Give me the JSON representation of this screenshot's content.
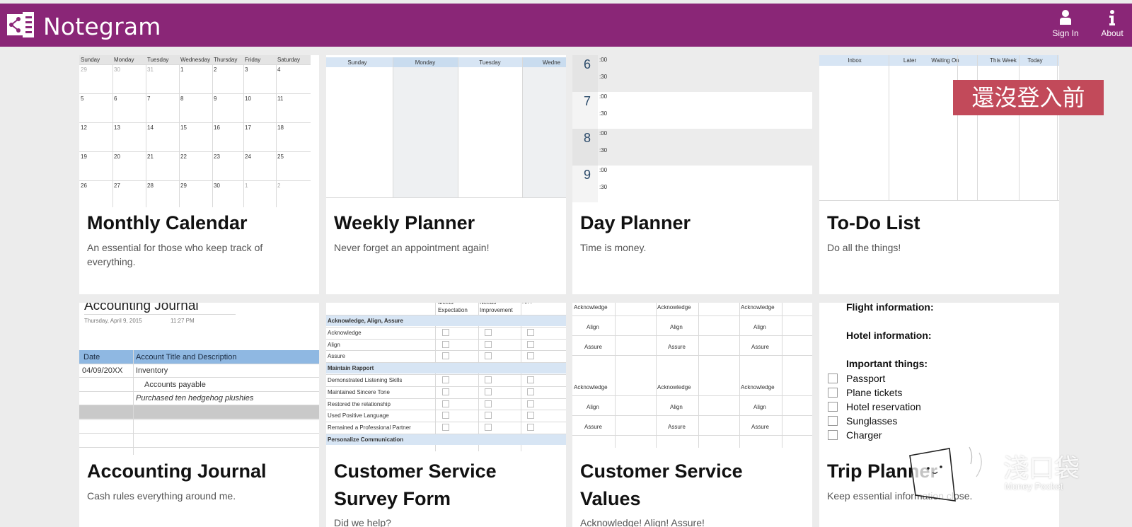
{
  "app": {
    "title": "Notegram",
    "brand_color": "#8a2677"
  },
  "header": {
    "sign_in_label": "Sign In",
    "about_label": "About",
    "sign_in_icon": "person-icon",
    "about_icon": "info-icon"
  },
  "banner": {
    "text": "還沒登入前"
  },
  "watermark": {
    "text": "淺口袋",
    "sub": "Money Pocket"
  },
  "cards": [
    {
      "title": "Monthly Calendar",
      "desc": "An essential for those who keep track of everything."
    },
    {
      "title": "Weekly Planner",
      "desc": "Never forget an appointment again!"
    },
    {
      "title": "Day Planner",
      "desc": "Time is money."
    },
    {
      "title": "To-Do List",
      "desc": "Do all the things!"
    },
    {
      "title": "Accounting Journal",
      "desc": "Cash rules everything around me."
    },
    {
      "title": "Customer Service Survey Form",
      "desc": "Did we help?"
    },
    {
      "title": "Customer Service Values",
      "desc": "Acknowledge! Align! Assure!"
    },
    {
      "title": "Trip Planner",
      "desc": "Keep essential information close."
    }
  ],
  "thumbs": {
    "monthly": {
      "days": [
        "Sunday",
        "Monday",
        "Tuesday",
        "Wednesday",
        "Thursday",
        "Friday",
        "Saturday"
      ],
      "weeks": [
        [
          "29",
          "30",
          "31",
          "1",
          "2",
          "3",
          "4"
        ],
        [
          "5",
          "6",
          "7",
          "8",
          "9",
          "10",
          "11"
        ],
        [
          "12",
          "13",
          "14",
          "15",
          "16",
          "17",
          "18"
        ],
        [
          "19",
          "20",
          "21",
          "22",
          "23",
          "24",
          "25"
        ],
        [
          "26",
          "27",
          "28",
          "29",
          "30",
          "1",
          "2"
        ]
      ]
    },
    "weekly": {
      "days": [
        "Sunday",
        "Monday",
        "Tuesday",
        "Wedne"
      ]
    },
    "day": {
      "hours": [
        "6",
        "7",
        "8",
        "9"
      ],
      "min00": ":00",
      "min30": ":30"
    },
    "todo": {
      "columns": [
        "Inbox",
        "Later",
        "Waiting On",
        "This Week",
        "Today"
      ]
    },
    "accounting": {
      "title": "Accounting Journal",
      "date": "Thursday, April 9, 2015",
      "time": "11:27 PM",
      "col_date": "Date",
      "col_account": "Account Title and Description",
      "row_date": "04/09/20XX",
      "row1": "Inventory",
      "row2": "Accounts payable",
      "row3": "Purchased ten hedgehog plushies"
    },
    "survey": {
      "headers": [
        "Meets Expectation",
        "Needs Improvement",
        "N/A"
      ],
      "rows": [
        {
          "label": "Acknowledge, Align, Assure",
          "section": true
        },
        {
          "label": "Acknowledge",
          "section": false
        },
        {
          "label": "Align",
          "section": false
        },
        {
          "label": "Assure",
          "section": false
        },
        {
          "label": "Maintain Rapport",
          "section": true
        },
        {
          "label": "Demonstrated Listening Skills",
          "section": false
        },
        {
          "label": "Maintained Sincere Tone",
          "section": false
        },
        {
          "label": "Restored the relationship",
          "section": false
        },
        {
          "label": "Used Positive Language",
          "section": false
        },
        {
          "label": "Remained a Professional Partner",
          "section": false
        },
        {
          "label": "Personalize Communication",
          "section": true
        }
      ]
    },
    "values": {
      "ack": "Acknowledge",
      "align": "Align",
      "assure": "Assure"
    },
    "trip": {
      "flight": "Flight information:",
      "hotel": "Hotel information:",
      "important": "Important things:",
      "items": [
        "Passport",
        "Plane tickets",
        "Hotel reservation",
        "Sunglasses",
        "Charger"
      ]
    }
  }
}
